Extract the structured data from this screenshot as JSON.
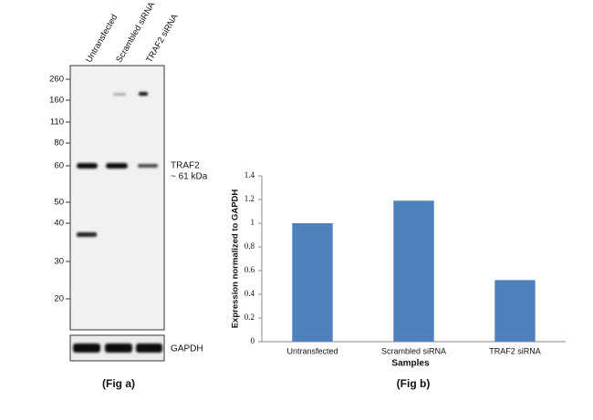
{
  "blot": {
    "lanes": [
      "Untransfected",
      "Scrambled siRNA",
      "TRAF2 siRNA"
    ],
    "markers": [
      260,
      160,
      110,
      80,
      60,
      50,
      40,
      30,
      20
    ],
    "target_label": [
      "TRAF2",
      "~ 61 kDa"
    ],
    "loading_control": "GAPDH",
    "caption": "(Fig a)"
  },
  "chart_data": {
    "type": "bar",
    "caption": "(Fig b)",
    "y_label": "Expression  normalized to GAPDH",
    "x_label": "Samples",
    "categories": [
      "Untransfected",
      "Scrambled siRNA",
      "TRAF2 siRNA"
    ],
    "values": [
      1.0,
      1.19,
      0.52
    ],
    "color": "#4f81bd",
    "ylim": [
      0,
      1.4
    ],
    "yticks": [
      0,
      0.2,
      0.4,
      0.6,
      0.8,
      1,
      1.2,
      1.4
    ],
    "grid": false
  }
}
